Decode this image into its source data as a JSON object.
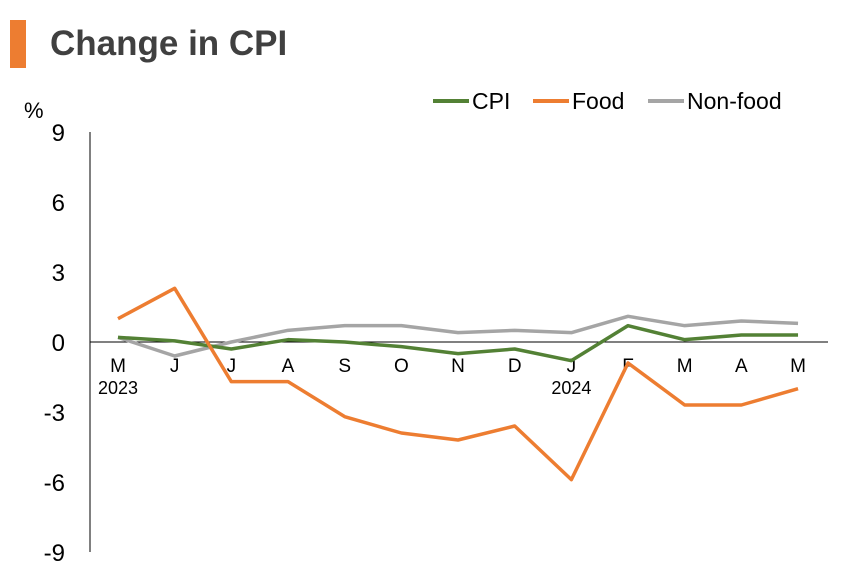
{
  "chart_data": {
    "type": "line",
    "title": "Change in CPI",
    "ylabel": "%",
    "ylim": [
      -9,
      9
    ],
    "yticks": [
      9,
      6,
      3,
      0,
      -3,
      -6,
      -9
    ],
    "categories": [
      "M",
      "J",
      "J",
      "A",
      "S",
      "O",
      "N",
      "D",
      "J",
      "F",
      "M",
      "A",
      "M"
    ],
    "year_labels": [
      {
        "index": 0,
        "label": "2023"
      },
      {
        "index": 8,
        "label": "2024"
      }
    ],
    "grid": false,
    "legend": "top-right",
    "series": [
      {
        "name": "CPI",
        "color": "#538135",
        "values": [
          0.2,
          0.05,
          -0.3,
          0.1,
          0.0,
          -0.2,
          -0.5,
          -0.3,
          -0.8,
          0.7,
          0.1,
          0.3,
          0.3
        ]
      },
      {
        "name": "Food",
        "color": "#ED7D31",
        "values": [
          1.0,
          2.3,
          -1.7,
          -1.7,
          -3.2,
          -3.9,
          -4.2,
          -3.6,
          -5.9,
          -0.9,
          -2.7,
          -2.7,
          -2.0
        ]
      },
      {
        "name": "Non-food",
        "color": "#A5A5A5",
        "values": [
          0.2,
          -0.6,
          0.0,
          0.5,
          0.7,
          0.7,
          0.4,
          0.5,
          0.4,
          1.1,
          0.7,
          0.9,
          0.8
        ]
      }
    ]
  },
  "accent_color": "#ED7D31"
}
